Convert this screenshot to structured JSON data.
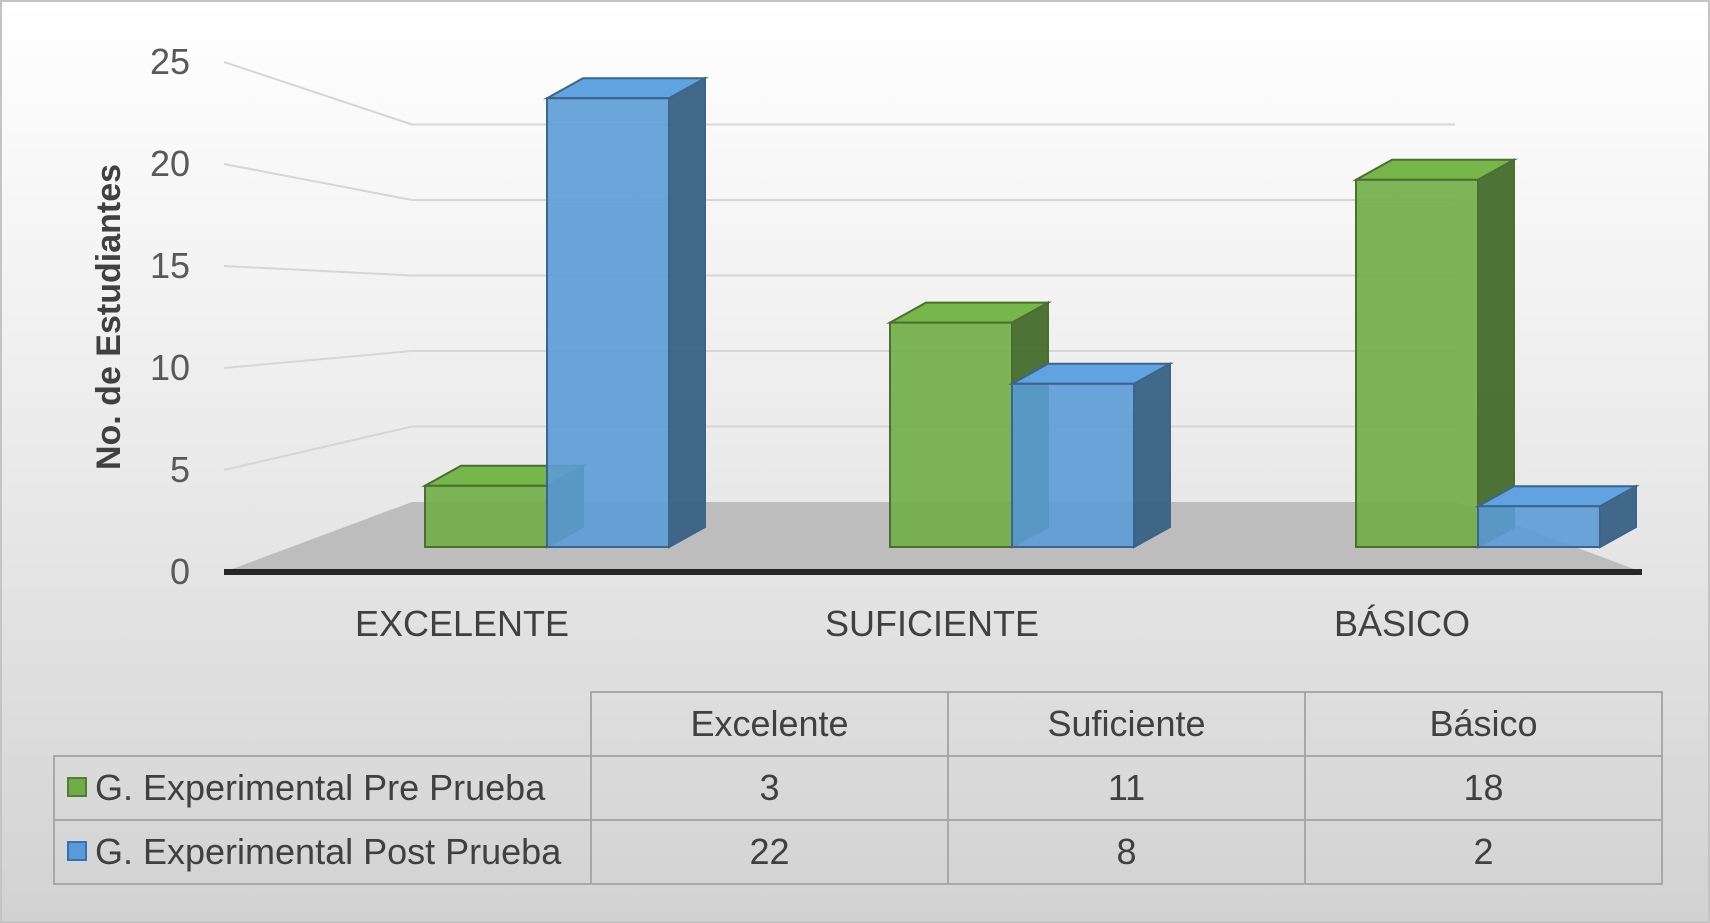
{
  "chart_data": {
    "type": "bar",
    "ylabel": "No. de Estudiantes",
    "xlabel": "",
    "ylim": [
      0,
      25
    ],
    "yticks": [
      0,
      5,
      10,
      15,
      20,
      25
    ],
    "categories": [
      "EXCELENTE",
      "SUFICIENTE",
      "BÁSICO"
    ],
    "series": [
      {
        "name": "G. Experimental Pre Prueba",
        "values": [
          3,
          11,
          18
        ],
        "color": "#70ad47"
      },
      {
        "name": "G. Experimental Post Prueba",
        "values": [
          22,
          8,
          2
        ],
        "color": "#5b9bd5"
      }
    ],
    "grid": true,
    "legend_placement": "bottom data table",
    "table": {
      "header": [
        "Excelente",
        "Suficiente",
        "Básico"
      ],
      "rows": [
        {
          "series": "G. Experimental Pre Prueba",
          "values": [
            "3",
            "11",
            "18"
          ]
        },
        {
          "series": "G. Experimental Post Prueba",
          "values": [
            "22",
            "8",
            "2"
          ]
        }
      ]
    }
  }
}
